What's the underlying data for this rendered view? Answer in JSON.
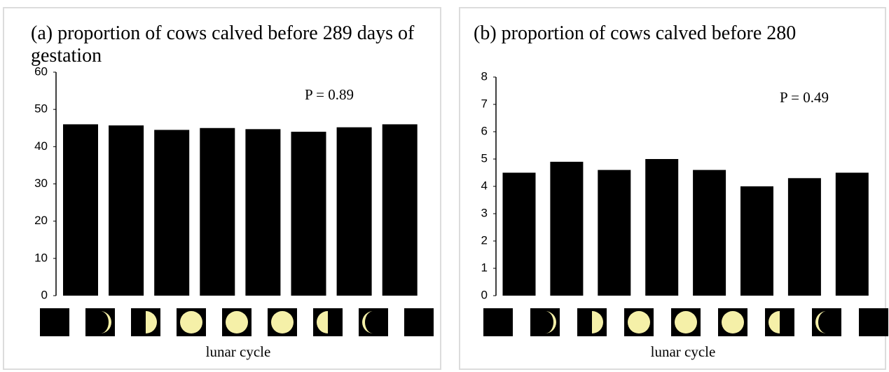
{
  "chart_data": [
    {
      "type": "bar",
      "title": "(a) proportion of cows calved before 289 days of gestation",
      "categories": [
        null,
        null,
        null,
        null,
        null,
        null,
        null,
        null
      ],
      "values": [
        46,
        45.7,
        44.5,
        45,
        44.7,
        44,
        45.2,
        46
      ],
      "color": "#000000",
      "ylim": [
        0,
        60
      ],
      "yticks": [
        0,
        10,
        20,
        30,
        40,
        50,
        60
      ],
      "annotation": "P = 0.89",
      "x_label": "lunar cycle"
    },
    {
      "type": "bar",
      "title": "(b) proportion of cows calved before 280",
      "categories": [
        null,
        null,
        null,
        null,
        null,
        null,
        null,
        null
      ],
      "values": [
        4.5,
        4.9,
        4.6,
        5.0,
        4.6,
        4.0,
        4.3,
        4.5
      ],
      "color": "#000000",
      "ylim": [
        0,
        8
      ],
      "yticks": [
        0,
        1,
        2,
        3,
        4,
        5,
        6,
        7,
        8
      ],
      "annotation": "P = 0.49",
      "x_label": "lunar cycle"
    }
  ]
}
